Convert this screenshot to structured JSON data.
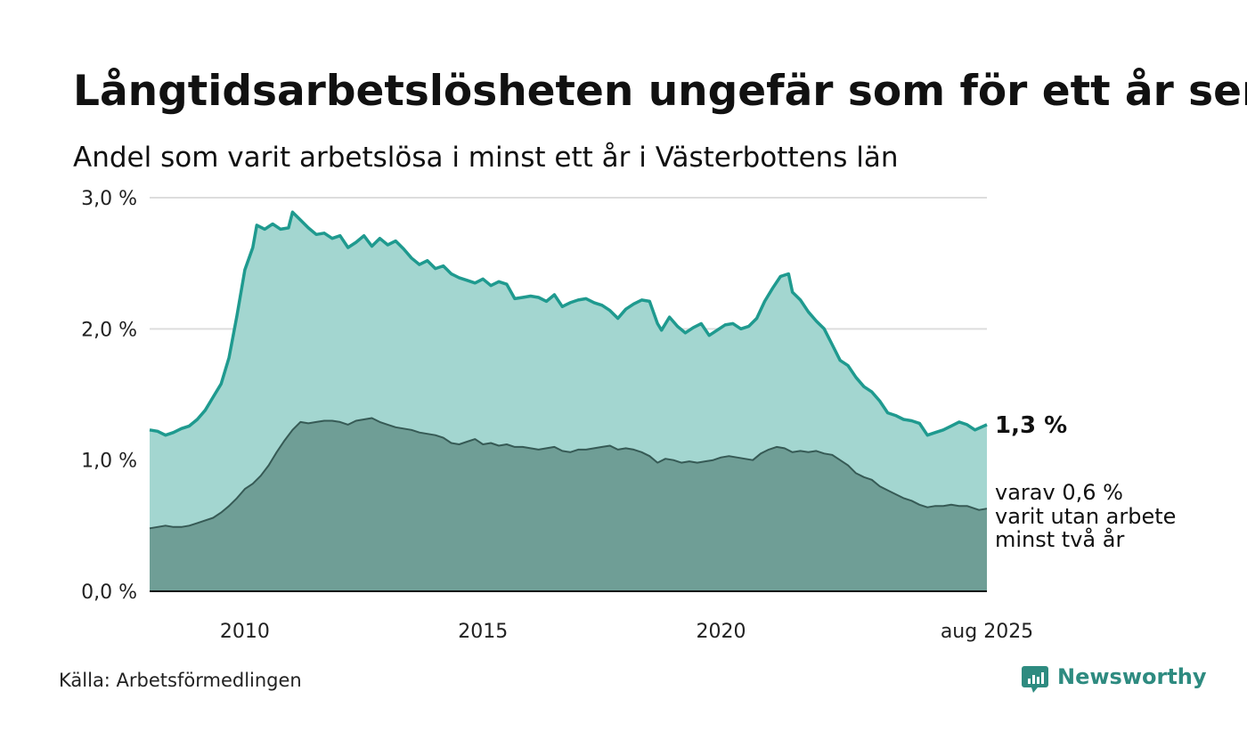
{
  "header": {
    "title": "Långtidsarbetslösheten ungefär som för ett år sen",
    "subtitle": "Andel som varit arbetslösa i minst ett år i Västerbottens län"
  },
  "footer": {
    "source": "Källa: Arbetsförmedlingen",
    "brand": "Newsworthy"
  },
  "annotations": {
    "end_value": "1,3 %",
    "sub_lines": [
      "varav 0,6 %",
      "varit utan arbete",
      "minst två år"
    ]
  },
  "colors": {
    "upper_fill": "#a3d6d0",
    "upper_line": "#1f9a8f",
    "lower_fill": "#6f9e96",
    "lower_line": "#365a55",
    "grid": "#dddddd",
    "brand": "#2e8b80"
  },
  "icons": {
    "brand": "newsworthy-logo-icon"
  },
  "chart_data": {
    "type": "area",
    "title": "Långtidsarbetslösheten ungefär som för ett år sen",
    "subtitle": "Andel som varit arbetslösa i minst ett år i Västerbottens län",
    "x_range": [
      "2008-01",
      "2025-08"
    ],
    "ylim": [
      0,
      3
    ],
    "y_ticks": [
      0,
      1,
      2,
      3
    ],
    "y_tick_labels": [
      "0,0 %",
      "1,0 %",
      "2,0 %",
      "3,0 %"
    ],
    "x_ticks": [
      "2010-01",
      "2015-01",
      "2020-01",
      "2025-08"
    ],
    "x_tick_labels": [
      "2010",
      "2015",
      "2020",
      "aug 2025"
    ],
    "grid": true,
    "series": [
      {
        "name": "",
        "points": [
          [
            "2008-01",
            1.23
          ],
          [
            "2008-03",
            1.22
          ],
          [
            "2008-05",
            1.19
          ],
          [
            "2008-07",
            1.21
          ],
          [
            "2008-09",
            1.24
          ],
          [
            "2008-11",
            1.26
          ],
          [
            "2009-01",
            1.31
          ],
          [
            "2009-03",
            1.38
          ],
          [
            "2009-05",
            1.48
          ],
          [
            "2009-07",
            1.58
          ],
          [
            "2009-09",
            1.78
          ],
          [
            "2009-11",
            2.1
          ],
          [
            "2010-01",
            2.45
          ],
          [
            "2010-03",
            2.62
          ],
          [
            "2010-04",
            2.79
          ],
          [
            "2010-06",
            2.76
          ],
          [
            "2010-08",
            2.8
          ],
          [
            "2010-10",
            2.76
          ],
          [
            "2010-12",
            2.77
          ],
          [
            "2011-01",
            2.89
          ],
          [
            "2011-03",
            2.83
          ],
          [
            "2011-05",
            2.77
          ],
          [
            "2011-07",
            2.72
          ],
          [
            "2011-09",
            2.73
          ],
          [
            "2011-11",
            2.69
          ],
          [
            "2012-01",
            2.71
          ],
          [
            "2012-03",
            2.62
          ],
          [
            "2012-05",
            2.66
          ],
          [
            "2012-07",
            2.71
          ],
          [
            "2012-09",
            2.63
          ],
          [
            "2012-11",
            2.69
          ],
          [
            "2013-01",
            2.64
          ],
          [
            "2013-03",
            2.67
          ],
          [
            "2013-05",
            2.61
          ],
          [
            "2013-07",
            2.54
          ],
          [
            "2013-09",
            2.49
          ],
          [
            "2013-11",
            2.52
          ],
          [
            "2014-01",
            2.46
          ],
          [
            "2014-03",
            2.48
          ],
          [
            "2014-05",
            2.42
          ],
          [
            "2014-07",
            2.39
          ],
          [
            "2014-09",
            2.37
          ],
          [
            "2014-11",
            2.35
          ],
          [
            "2015-01",
            2.38
          ],
          [
            "2015-03",
            2.33
          ],
          [
            "2015-05",
            2.36
          ],
          [
            "2015-07",
            2.34
          ],
          [
            "2015-09",
            2.23
          ],
          [
            "2015-11",
            2.24
          ],
          [
            "2016-01",
            2.25
          ],
          [
            "2016-03",
            2.24
          ],
          [
            "2016-05",
            2.21
          ],
          [
            "2016-07",
            2.26
          ],
          [
            "2016-09",
            2.17
          ],
          [
            "2016-11",
            2.2
          ],
          [
            "2017-01",
            2.22
          ],
          [
            "2017-03",
            2.23
          ],
          [
            "2017-05",
            2.2
          ],
          [
            "2017-07",
            2.18
          ],
          [
            "2017-09",
            2.14
          ],
          [
            "2017-11",
            2.08
          ],
          [
            "2018-01",
            2.15
          ],
          [
            "2018-03",
            2.19
          ],
          [
            "2018-05",
            2.22
          ],
          [
            "2018-07",
            2.21
          ],
          [
            "2018-09",
            2.04
          ],
          [
            "2018-10",
            1.99
          ],
          [
            "2018-12",
            2.09
          ],
          [
            "2019-02",
            2.02
          ],
          [
            "2019-04",
            1.97
          ],
          [
            "2019-06",
            2.01
          ],
          [
            "2019-08",
            2.04
          ],
          [
            "2019-10",
            1.95
          ],
          [
            "2019-12",
            1.99
          ],
          [
            "2020-02",
            2.03
          ],
          [
            "2020-04",
            2.04
          ],
          [
            "2020-06",
            2.0
          ],
          [
            "2020-08",
            2.02
          ],
          [
            "2020-10",
            2.08
          ],
          [
            "2020-12",
            2.21
          ],
          [
            "2021-02",
            2.31
          ],
          [
            "2021-04",
            2.4
          ],
          [
            "2021-06",
            2.42
          ],
          [
            "2021-07",
            2.28
          ],
          [
            "2021-09",
            2.22
          ],
          [
            "2021-11",
            2.13
          ],
          [
            "2022-01",
            2.06
          ],
          [
            "2022-03",
            2.0
          ],
          [
            "2022-05",
            1.88
          ],
          [
            "2022-07",
            1.76
          ],
          [
            "2022-09",
            1.72
          ],
          [
            "2022-11",
            1.63
          ],
          [
            "2023-01",
            1.56
          ],
          [
            "2023-03",
            1.52
          ],
          [
            "2023-05",
            1.45
          ],
          [
            "2023-07",
            1.36
          ],
          [
            "2023-09",
            1.34
          ],
          [
            "2023-11",
            1.31
          ],
          [
            "2024-01",
            1.3
          ],
          [
            "2024-03",
            1.28
          ],
          [
            "2024-05",
            1.19
          ],
          [
            "2024-07",
            1.21
          ],
          [
            "2024-09",
            1.23
          ],
          [
            "2024-11",
            1.26
          ],
          [
            "2025-01",
            1.29
          ],
          [
            "2025-03",
            1.27
          ],
          [
            "2025-05",
            1.23
          ],
          [
            "2025-08",
            1.27
          ]
        ]
      },
      {
        "name": "",
        "points": [
          [
            "2008-01",
            0.48
          ],
          [
            "2008-03",
            0.49
          ],
          [
            "2008-05",
            0.5
          ],
          [
            "2008-07",
            0.49
          ],
          [
            "2008-09",
            0.49
          ],
          [
            "2008-11",
            0.5
          ],
          [
            "2009-01",
            0.52
          ],
          [
            "2009-03",
            0.54
          ],
          [
            "2009-05",
            0.56
          ],
          [
            "2009-07",
            0.6
          ],
          [
            "2009-09",
            0.65
          ],
          [
            "2009-11",
            0.71
          ],
          [
            "2010-01",
            0.78
          ],
          [
            "2010-03",
            0.82
          ],
          [
            "2010-05",
            0.88
          ],
          [
            "2010-07",
            0.96
          ],
          [
            "2010-09",
            1.06
          ],
          [
            "2010-11",
            1.15
          ],
          [
            "2011-01",
            1.23
          ],
          [
            "2011-03",
            1.29
          ],
          [
            "2011-05",
            1.28
          ],
          [
            "2011-07",
            1.29
          ],
          [
            "2011-09",
            1.3
          ],
          [
            "2011-11",
            1.3
          ],
          [
            "2012-01",
            1.29
          ],
          [
            "2012-03",
            1.27
          ],
          [
            "2012-05",
            1.3
          ],
          [
            "2012-07",
            1.31
          ],
          [
            "2012-09",
            1.32
          ],
          [
            "2012-11",
            1.29
          ],
          [
            "2013-01",
            1.27
          ],
          [
            "2013-03",
            1.25
          ],
          [
            "2013-05",
            1.24
          ],
          [
            "2013-07",
            1.23
          ],
          [
            "2013-09",
            1.21
          ],
          [
            "2013-11",
            1.2
          ],
          [
            "2014-01",
            1.19
          ],
          [
            "2014-03",
            1.17
          ],
          [
            "2014-05",
            1.13
          ],
          [
            "2014-07",
            1.12
          ],
          [
            "2014-09",
            1.14
          ],
          [
            "2014-11",
            1.16
          ],
          [
            "2015-01",
            1.12
          ],
          [
            "2015-03",
            1.13
          ],
          [
            "2015-05",
            1.11
          ],
          [
            "2015-07",
            1.12
          ],
          [
            "2015-09",
            1.1
          ],
          [
            "2015-11",
            1.1
          ],
          [
            "2016-01",
            1.09
          ],
          [
            "2016-03",
            1.08
          ],
          [
            "2016-05",
            1.09
          ],
          [
            "2016-07",
            1.1
          ],
          [
            "2016-09",
            1.07
          ],
          [
            "2016-11",
            1.06
          ],
          [
            "2017-01",
            1.08
          ],
          [
            "2017-03",
            1.08
          ],
          [
            "2017-05",
            1.09
          ],
          [
            "2017-07",
            1.1
          ],
          [
            "2017-09",
            1.11
          ],
          [
            "2017-11",
            1.08
          ],
          [
            "2018-01",
            1.09
          ],
          [
            "2018-03",
            1.08
          ],
          [
            "2018-05",
            1.06
          ],
          [
            "2018-07",
            1.03
          ],
          [
            "2018-09",
            0.98
          ],
          [
            "2018-11",
            1.01
          ],
          [
            "2019-01",
            1.0
          ],
          [
            "2019-03",
            0.98
          ],
          [
            "2019-05",
            0.99
          ],
          [
            "2019-07",
            0.98
          ],
          [
            "2019-09",
            0.99
          ],
          [
            "2019-11",
            1.0
          ],
          [
            "2020-01",
            1.02
          ],
          [
            "2020-03",
            1.03
          ],
          [
            "2020-05",
            1.02
          ],
          [
            "2020-07",
            1.01
          ],
          [
            "2020-09",
            1.0
          ],
          [
            "2020-11",
            1.05
          ],
          [
            "2021-01",
            1.08
          ],
          [
            "2021-03",
            1.1
          ],
          [
            "2021-05",
            1.09
          ],
          [
            "2021-07",
            1.06
          ],
          [
            "2021-09",
            1.07
          ],
          [
            "2021-11",
            1.06
          ],
          [
            "2022-01",
            1.07
          ],
          [
            "2022-03",
            1.05
          ],
          [
            "2022-05",
            1.04
          ],
          [
            "2022-07",
            1.0
          ],
          [
            "2022-09",
            0.96
          ],
          [
            "2022-11",
            0.9
          ],
          [
            "2023-01",
            0.87
          ],
          [
            "2023-03",
            0.85
          ],
          [
            "2023-05",
            0.8
          ],
          [
            "2023-07",
            0.77
          ],
          [
            "2023-09",
            0.74
          ],
          [
            "2023-11",
            0.71
          ],
          [
            "2024-01",
            0.69
          ],
          [
            "2024-03",
            0.66
          ],
          [
            "2024-05",
            0.64
          ],
          [
            "2024-07",
            0.65
          ],
          [
            "2024-09",
            0.65
          ],
          [
            "2024-11",
            0.66
          ],
          [
            "2025-01",
            0.65
          ],
          [
            "2025-03",
            0.65
          ],
          [
            "2025-05",
            0.63
          ],
          [
            "2025-06",
            0.62
          ],
          [
            "2025-08",
            0.63
          ]
        ]
      }
    ]
  }
}
